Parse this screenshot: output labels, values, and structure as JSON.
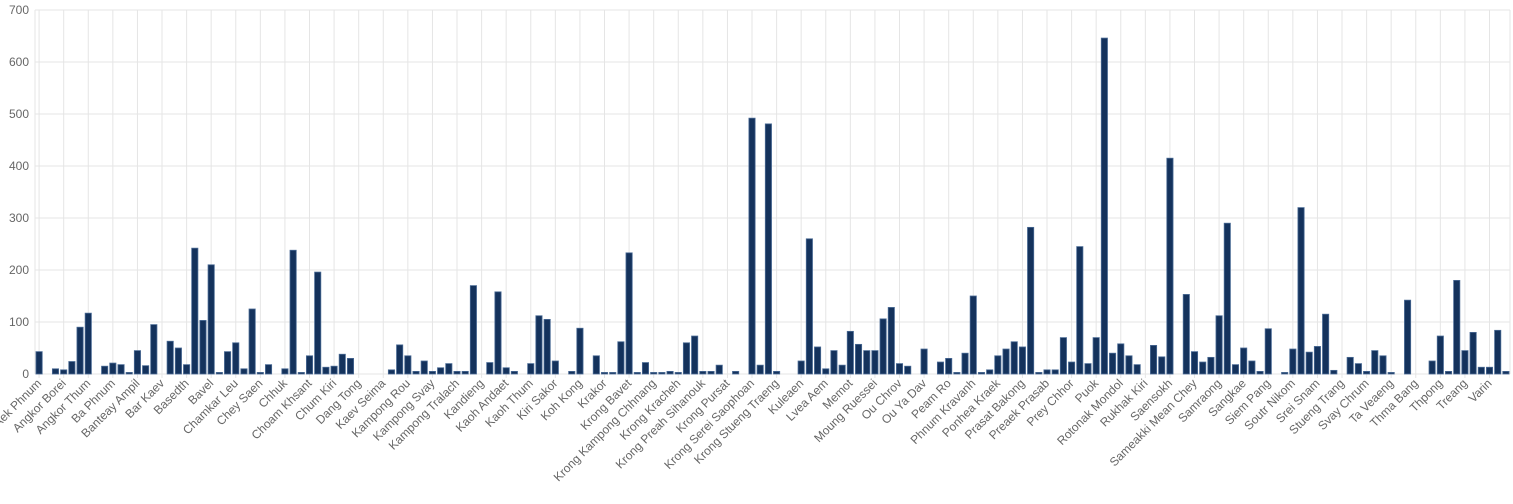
{
  "chart_data": {
    "type": "bar",
    "color": "#14325c",
    "grid": true,
    "ylim": [
      0,
      700
    ],
    "yticks": [
      0,
      100,
      200,
      300,
      400,
      500,
      600,
      700
    ],
    "categories": [
      "Aek Phnum",
      null,
      null,
      "Angkor Borei",
      null,
      null,
      "Angkor Thum",
      null,
      null,
      "Ba Phnum",
      null,
      null,
      "Banteay Ampil",
      null,
      null,
      "Bar Kaev",
      null,
      null,
      "Basedth",
      null,
      null,
      "Bavel",
      null,
      null,
      "Chamkar Leu",
      null,
      null,
      "Chey Saen",
      null,
      null,
      "Chhuk",
      null,
      null,
      "Choam Khsant",
      null,
      null,
      "Chum Kiri",
      null,
      null,
      "Dang Tong",
      null,
      null,
      "Kaev Seima",
      null,
      null,
      "Kampong Rou",
      null,
      null,
      "Kampong Svay",
      null,
      null,
      "Kampong Tralach",
      null,
      null,
      "Kandieng",
      null,
      null,
      "Kaoh Andaet",
      null,
      null,
      "Kaoh Thum",
      null,
      null,
      "Kiri Sakor",
      null,
      null,
      "Koh Kong",
      null,
      null,
      "Krakor",
      null,
      null,
      "Krong Bavet",
      null,
      null,
      "Krong Kampong Chhnang",
      null,
      null,
      "Krong Kracheh",
      null,
      null,
      "Krong Preah Sihanouk",
      null,
      null,
      "Krong Pursat",
      null,
      null,
      "Krong Serei Saophoan",
      null,
      null,
      "Krong Stueng Traeng",
      null,
      null,
      "Kuleaen",
      null,
      null,
      "Lvea Aem",
      null,
      null,
      "Memot",
      null,
      null,
      "Moung Ruessei",
      null,
      null,
      "Ou Chrov",
      null,
      null,
      "Ou Ya Dav",
      null,
      null,
      "Peam Ro",
      null,
      null,
      "Phnum Kravanh",
      null,
      null,
      "Ponhea Kraek",
      null,
      null,
      "Prasat Bakong",
      null,
      null,
      "Preaek Prasab",
      null,
      null,
      "Prey Chhor",
      null,
      null,
      "Puok",
      null,
      null,
      "Rotonak Mondol",
      null,
      null,
      "Rukhak Kiri",
      null,
      null,
      "Saensokh",
      null,
      null,
      "Sameakki Mean Chey",
      null,
      null,
      "Samraong",
      null,
      null,
      "Sangkae",
      null,
      null,
      "Siem Pang",
      null,
      null,
      "Soutr Nikom",
      null,
      null,
      "Srei Snam",
      null,
      null,
      "Stueng Trang",
      null,
      null,
      "Svay Chrum",
      null,
      null,
      "Ta Veaeng",
      null,
      null,
      "Thma Bang",
      null,
      null,
      "Thpong",
      null,
      null,
      "Treang",
      null,
      null,
      "Varin",
      null,
      null
    ],
    "values": [
      43,
      0,
      10,
      8,
      24,
      90,
      117,
      0,
      15,
      21,
      18,
      3,
      45,
      16,
      95,
      0,
      63,
      50,
      18,
      242,
      103,
      210,
      3,
      43,
      60,
      10,
      125,
      3,
      18,
      0,
      10,
      238,
      3,
      35,
      196,
      13,
      15,
      38,
      30,
      0,
      0,
      0,
      0,
      8,
      56,
      35,
      5,
      25,
      5,
      12,
      20,
      5,
      5,
      170,
      0,
      22,
      158,
      12,
      5,
      0,
      20,
      112,
      105,
      25,
      0,
      5,
      88,
      0,
      35,
      3,
      3,
      62,
      233,
      3,
      22,
      3,
      3,
      5,
      3,
      60,
      73,
      5,
      5,
      17,
      0,
      5,
      0,
      492,
      17,
      481,
      5,
      0,
      0,
      25,
      260,
      52,
      10,
      45,
      17,
      82,
      57,
      45,
      45,
      106,
      128,
      20,
      15,
      0,
      48,
      0,
      23,
      30,
      3,
      40,
      150,
      3,
      8,
      35,
      48,
      62,
      52,
      282,
      3,
      8,
      8,
      70,
      23,
      245,
      20,
      70,
      646,
      40,
      58,
      35,
      18,
      0,
      55,
      33,
      415,
      0,
      153,
      43,
      23,
      32,
      112,
      290,
      18,
      50,
      25,
      5,
      87,
      0,
      3,
      48,
      320,
      42,
      53,
      115,
      7,
      0,
      32,
      20,
      5,
      45,
      35,
      3,
      0,
      142,
      0,
      0,
      25,
      73,
      5,
      180,
      45,
      80,
      13,
      13,
      84,
      5
    ]
  }
}
